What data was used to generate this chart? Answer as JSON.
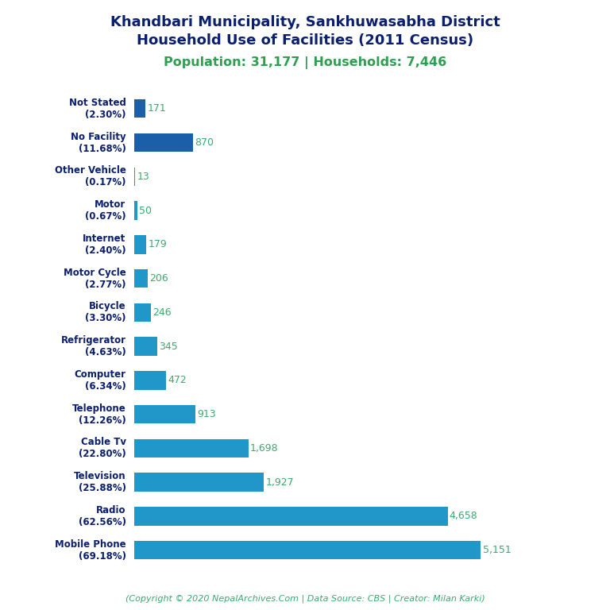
{
  "title_line1": "Khandbari Municipality, Sankhuwasabha District",
  "title_line2": "Household Use of Facilities (2011 Census)",
  "subtitle": "Population: 31,177 | Households: 7,446",
  "copyright": "(Copyright © 2020 NepalArchives.Com | Data Source: CBS | Creator: Milan Karki)",
  "categories": [
    "Not Stated\n(2.30%)",
    "No Facility\n(11.68%)",
    "Other Vehicle\n(0.17%)",
    "Motor\n(0.67%)",
    "Internet\n(2.40%)",
    "Motor Cycle\n(2.77%)",
    "Bicycle\n(3.30%)",
    "Refrigerator\n(4.63%)",
    "Computer\n(6.34%)",
    "Telephone\n(12.26%)",
    "Cable Tv\n(22.80%)",
    "Television\n(25.88%)",
    "Radio\n(62.56%)",
    "Mobile Phone\n(69.18%)"
  ],
  "values": [
    171,
    870,
    13,
    50,
    179,
    206,
    246,
    345,
    472,
    913,
    1698,
    1927,
    4658,
    5151
  ],
  "bar_colors": [
    "#1a5fa8",
    "#1a5fa8",
    "#2196c8",
    "#2196c8",
    "#2196c8",
    "#2196c8",
    "#2196c8",
    "#2196c8",
    "#2196c8",
    "#2196c8",
    "#2196c8",
    "#2196c8",
    "#2196c8",
    "#2196c8"
  ],
  "value_color": "#3aaa6e",
  "title_color": "#0a1f6e",
  "subtitle_color": "#2e9e50",
  "copyright_color": "#3aaa6e",
  "label_color": "#0a1f6e",
  "background_color": "#ffffff",
  "xlim": [
    0,
    5800
  ],
  "figsize": [
    7.68,
    7.68
  ],
  "dpi": 100
}
